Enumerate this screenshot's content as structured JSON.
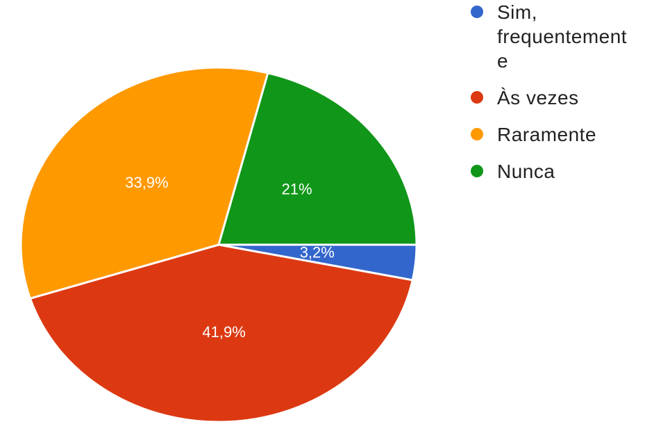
{
  "chart_data": {
    "type": "pie",
    "categories": [
      "Sim, frequentemente",
      "Às vezes",
      "Raramente",
      "Nunca"
    ],
    "values": [
      3.2,
      41.9,
      33.9,
      21
    ],
    "value_labels": [
      "3,2%",
      "41,9%",
      "33,9%",
      "21%"
    ],
    "colors": [
      "#3366cc",
      "#dc3912",
      "#ff9900",
      "#109618"
    ],
    "legend": "right"
  }
}
